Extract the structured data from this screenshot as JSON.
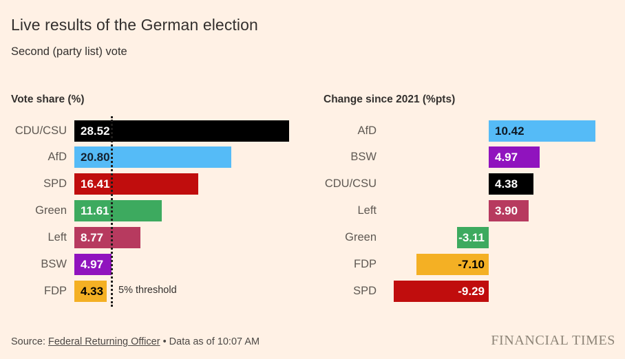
{
  "page": {
    "title": "Live results of the German election",
    "subtitle": "Second (party list) vote",
    "background_color": "#FFF1E5",
    "source_prefix": "Source:",
    "source_link": "Federal Returning Officer",
    "source_suffix": "• Data as of 10:07 AM",
    "brand": "FINANCIAL TIMES"
  },
  "chart_data": [
    {
      "type": "bar",
      "orientation": "horizontal",
      "title": "Vote share (%)",
      "categories": [
        "CDU/CSU",
        "AfD",
        "SPD",
        "Green",
        "Left",
        "BSW",
        "FDP"
      ],
      "values": [
        28.52,
        20.8,
        16.41,
        11.61,
        8.77,
        4.97,
        4.33
      ],
      "value_labels": [
        "28.52",
        "20.80",
        "16.41",
        "11.61",
        "8.77",
        "4.97",
        "4.33"
      ],
      "bar_colors": [
        "#000000",
        "#55BBF7",
        "#C00D0D",
        "#3DAA5F",
        "#B73A5F",
        "#9013BE",
        "#F4B024"
      ],
      "value_label_colors": [
        "#FFFFFF",
        "#14202E",
        "#FFFFFF",
        "#FFFFFF",
        "#FFFFFF",
        "#FFFFFF",
        "#000000"
      ],
      "xlim": [
        0,
        28.6
      ],
      "grid": false,
      "legend": false,
      "annotation": {
        "text": "5% threshold",
        "x": 5
      }
    },
    {
      "type": "bar",
      "orientation": "horizontal",
      "title": "Change since 2021 (%pts)",
      "categories": [
        "AfD",
        "BSW",
        "CDU/CSU",
        "Left",
        "Green",
        "FDP",
        "SPD"
      ],
      "values": [
        10.42,
        4.97,
        4.38,
        3.9,
        -3.11,
        -7.1,
        -9.29
      ],
      "value_labels": [
        "10.42",
        "4.97",
        "4.38",
        "3.90",
        "-3.11",
        "-7.10",
        "-9.29"
      ],
      "bar_colors": [
        "#55BBF7",
        "#9013BE",
        "#000000",
        "#B73A5F",
        "#3DAA5F",
        "#F4B024",
        "#C00D0D"
      ],
      "value_label_colors": [
        "#0E1822",
        "#FFFFFF",
        "#FFFFFF",
        "#FFFFFF",
        "#FFFFFF",
        "#000000",
        "#FFFFFF"
      ],
      "xlim": [
        -9.5,
        10.6
      ],
      "grid": false,
      "legend": false
    }
  ]
}
